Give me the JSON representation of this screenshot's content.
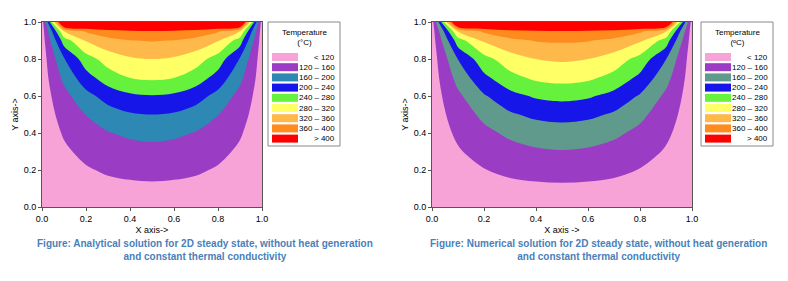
{
  "chart_data": [
    {
      "type": "contour",
      "title": "Figure: Analytical solution for 2D steady state, without heat generation\nand constant thermal conductivity",
      "x_label": "X axis->",
      "y_label": "Y axis->",
      "x": [
        0,
        0.1,
        0.2,
        0.3,
        0.4,
        0.5,
        0.6,
        0.7,
        0.8,
        0.9,
        1
      ],
      "y": [
        0,
        0.1,
        0.2,
        0.3,
        0.4,
        0.5,
        0.6,
        0.7,
        0.8,
        0.9,
        0.95,
        1
      ],
      "z": [
        [
          100,
          100,
          100,
          100,
          100,
          100,
          100,
          100,
          100,
          100,
          100
        ],
        [
          100,
          104,
          108,
          111,
          113,
          114,
          113,
          111,
          108,
          104,
          100
        ],
        [
          100,
          109,
          117,
          124,
          128,
          130,
          128,
          124,
          117,
          109,
          100
        ],
        [
          100,
          115,
          128,
          139,
          146,
          148,
          146,
          139,
          128,
          115,
          100
        ],
        [
          100,
          123,
          142,
          158,
          167,
          171,
          167,
          158,
          142,
          123,
          100
        ],
        [
          100,
          133,
          161,
          183,
          196,
          200,
          196,
          183,
          161,
          133,
          100
        ],
        [
          100,
          147,
          187,
          216,
          233,
          238,
          233,
          216,
          187,
          147,
          100
        ],
        [
          100,
          170,
          225,
          261,
          281,
          287,
          281,
          261,
          225,
          170,
          100
        ],
        [
          100,
          197,
          262,
          298,
          315,
          320,
          315,
          298,
          262,
          197,
          100
        ],
        [
          100,
          260,
          323,
          348,
          359,
          362,
          359,
          348,
          323,
          260,
          100
        ],
        [
          100,
          320,
          365,
          385,
          393,
          396,
          393,
          385,
          365,
          320,
          100
        ],
        [
          100,
          500,
          500,
          500,
          500,
          500,
          500,
          500,
          500,
          500,
          100
        ]
      ],
      "levels": [
        120,
        160,
        200,
        240,
        280,
        320,
        360,
        400
      ],
      "colors": [
        "#f7a3d8",
        "#9a3dc4",
        "#2e88b4",
        "#1616e8",
        "#66f23c",
        "#ffff66",
        "#ffb84a",
        "#ff8a1e",
        "#ff0000"
      ],
      "legend_title": "Temperature\n(°C)",
      "legend_labels": [
        "< 120",
        "120 – 160",
        "160 – 200",
        "200 – 240",
        "240 – 280",
        "280 – 320",
        "320 – 360",
        "360 – 400",
        "> 400"
      ],
      "xlim": [
        0,
        1
      ],
      "ylim": [
        0,
        1
      ],
      "xticks": [
        {
          "value": 0,
          "label": "0.0"
        },
        {
          "value": 0.2,
          "label": "0.2"
        },
        {
          "value": 0.4,
          "label": "0.4"
        },
        {
          "value": 0.6,
          "label": "0.6"
        },
        {
          "value": 0.8,
          "label": "0.8"
        },
        {
          "value": 1,
          "label": "1.0"
        }
      ],
      "yticks": [
        {
          "value": 0,
          "label": "0.0"
        },
        {
          "value": 0.2,
          "label": "0.2"
        },
        {
          "value": 0.4,
          "label": "0.4"
        },
        {
          "value": 0.6,
          "label": "0.6"
        },
        {
          "value": 0.8,
          "label": "0.8"
        },
        {
          "value": 1,
          "label": "1.0"
        }
      ]
    },
    {
      "type": "contour",
      "title": "Figure: Numerical solution for 2D steady state, without heat generation\nand constant thermal conductivity",
      "x_label": "X axis ->",
      "y_label": "Y axis->",
      "x": [
        0,
        0.1,
        0.2,
        0.3,
        0.4,
        0.5,
        0.6,
        0.7,
        0.8,
        0.9,
        1
      ],
      "y": [
        0,
        0.1,
        0.2,
        0.3,
        0.4,
        0.5,
        0.6,
        0.7,
        0.8,
        0.9,
        0.95,
        1
      ],
      "z": [
        [
          100,
          100,
          100,
          100,
          100,
          100,
          100,
          100,
          100,
          100,
          100
        ],
        [
          100,
          105,
          109,
          112,
          114,
          115,
          114,
          112,
          109,
          105,
          100
        ],
        [
          100,
          110,
          119,
          126,
          130,
          131,
          130,
          126,
          119,
          110,
          100
        ],
        [
          100,
          117,
          133,
          146,
          155,
          158,
          155,
          146,
          133,
          117,
          100
        ],
        [
          100,
          126,
          150,
          168,
          178,
          182,
          178,
          168,
          150,
          126,
          100
        ],
        [
          100,
          137,
          170,
          195,
          209,
          214,
          209,
          195,
          170,
          137,
          100
        ],
        [
          100,
          152,
          196,
          227,
          245,
          251,
          245,
          227,
          196,
          152,
          100
        ],
        [
          100,
          174,
          231,
          268,
          288,
          294,
          288,
          268,
          231,
          174,
          100
        ],
        [
          100,
          201,
          266,
          302,
          320,
          325,
          320,
          302,
          266,
          201,
          100
        ],
        [
          100,
          262,
          326,
          351,
          362,
          365,
          362,
          351,
          326,
          262,
          100
        ],
        [
          100,
          322,
          367,
          387,
          395,
          398,
          395,
          387,
          367,
          322,
          100
        ],
        [
          100,
          500,
          500,
          500,
          500,
          500,
          500,
          500,
          500,
          500,
          100
        ]
      ],
      "levels": [
        120,
        160,
        200,
        240,
        280,
        320,
        360,
        400
      ],
      "colors": [
        "#f7a3d8",
        "#9a3dc4",
        "#5f9a8c",
        "#1616e8",
        "#66f23c",
        "#ffff66",
        "#ffb84a",
        "#ff8a1e",
        "#ff0000"
      ],
      "legend_title": "Temperature\n(ᵒC)",
      "legend_labels": [
        "< 120",
        "120 – 160",
        "160 – 200",
        "200 – 240",
        "240 – 280",
        "280 – 320",
        "320 – 360",
        "360 – 400",
        "> 400"
      ],
      "xlim": [
        0,
        1
      ],
      "ylim": [
        0,
        1
      ],
      "xticks": [
        {
          "value": 0,
          "label": "0.0"
        },
        {
          "value": 0.2,
          "label": "0.2"
        },
        {
          "value": 0.4,
          "label": "0.4"
        },
        {
          "value": 0.6,
          "label": "0.6"
        },
        {
          "value": 0.8,
          "label": "0.8"
        },
        {
          "value": 1,
          "label": "1.0"
        }
      ],
      "yticks": [
        {
          "value": 0,
          "label": "0.0"
        },
        {
          "value": 0.2,
          "label": "0.2"
        },
        {
          "value": 0.4,
          "label": "0.4"
        },
        {
          "value": 0.6,
          "label": "0.6"
        },
        {
          "value": 0.8,
          "label": "0.8"
        },
        {
          "value": 1,
          "label": "1.0"
        }
      ]
    }
  ]
}
